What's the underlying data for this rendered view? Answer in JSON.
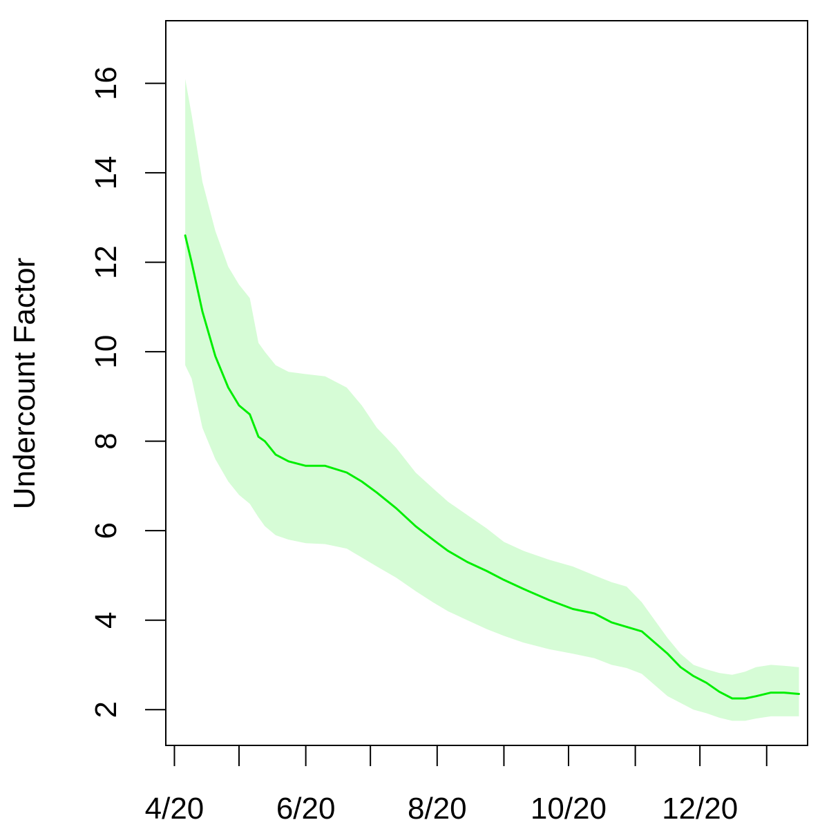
{
  "chart_data": {
    "type": "line",
    "title": "",
    "xlabel": "",
    "ylabel": "Undercount Factor",
    "x_ticks": [
      "4/20",
      "",
      "6/20",
      "",
      "8/20",
      "",
      "10/20",
      "",
      "12/20",
      ""
    ],
    "x_tick_dates": [
      "2020-04-01",
      "2020-05-01",
      "2020-06-01",
      "2020-07-01",
      "2020-08-01",
      "2020-09-01",
      "2020-10-01",
      "2020-11-01",
      "2020-12-01",
      "2021-01-01"
    ],
    "xlim": [
      "2020-03-28",
      "2021-01-20"
    ],
    "ylim": [
      1.2,
      17.4
    ],
    "y_ticks": [
      2,
      4,
      6,
      8,
      10,
      12,
      14,
      16
    ],
    "grid": false,
    "colors": {
      "line": "#00ee00",
      "band": "#d6fcd6",
      "axis": "#000000"
    },
    "series": [
      {
        "x": [
          "2020-04-06",
          "2020-04-09",
          "2020-04-14",
          "2020-04-20",
          "2020-04-26",
          "2020-05-01",
          "2020-05-06",
          "2020-05-10",
          "2020-05-13",
          "2020-05-18",
          "2020-05-24",
          "2020-06-01",
          "2020-06-10",
          "2020-06-20",
          "2020-06-27",
          "2020-07-04",
          "2020-07-13",
          "2020-07-22",
          "2020-07-30",
          "2020-08-06",
          "2020-08-15",
          "2020-08-24",
          "2020-09-01",
          "2020-09-10",
          "2020-09-22",
          "2020-10-03",
          "2020-10-13",
          "2020-10-21",
          "2020-10-28",
          "2020-11-04",
          "2020-11-10",
          "2020-11-16",
          "2020-11-22",
          "2020-11-28",
          "2020-12-04",
          "2020-12-10",
          "2020-12-16",
          "2020-12-22",
          "2020-12-27",
          "2021-01-03",
          "2021-01-09",
          "2021-01-16"
        ],
        "y": [
          12.6,
          12.0,
          10.9,
          9.9,
          9.2,
          8.8,
          8.6,
          8.1,
          8.0,
          7.7,
          7.55,
          7.45,
          7.45,
          7.3,
          7.1,
          6.85,
          6.5,
          6.1,
          5.8,
          5.55,
          5.3,
          5.1,
          4.9,
          4.7,
          4.45,
          4.25,
          4.15,
          3.95,
          3.85,
          3.75,
          3.5,
          3.25,
          2.95,
          2.75,
          2.6,
          2.4,
          2.25,
          2.25,
          2.3,
          2.38,
          2.38,
          2.35
        ],
        "lower": [
          9.7,
          9.4,
          8.3,
          7.6,
          7.1,
          6.8,
          6.6,
          6.3,
          6.1,
          5.9,
          5.8,
          5.72,
          5.7,
          5.6,
          5.4,
          5.2,
          4.95,
          4.65,
          4.4,
          4.2,
          4.0,
          3.8,
          3.65,
          3.5,
          3.35,
          3.25,
          3.15,
          3.0,
          2.93,
          2.8,
          2.55,
          2.3,
          2.15,
          2.0,
          1.92,
          1.82,
          1.75,
          1.75,
          1.8,
          1.85,
          1.85,
          1.85
        ],
        "upper": [
          16.1,
          15.3,
          13.8,
          12.7,
          11.9,
          11.5,
          11.2,
          10.2,
          10.0,
          9.7,
          9.55,
          9.5,
          9.45,
          9.2,
          8.8,
          8.3,
          7.85,
          7.3,
          6.95,
          6.65,
          6.35,
          6.05,
          5.75,
          5.55,
          5.35,
          5.2,
          5.0,
          4.85,
          4.75,
          4.4,
          4.0,
          3.6,
          3.25,
          3.0,
          2.9,
          2.82,
          2.78,
          2.85,
          2.95,
          3.0,
          2.98,
          2.95
        ]
      }
    ]
  }
}
